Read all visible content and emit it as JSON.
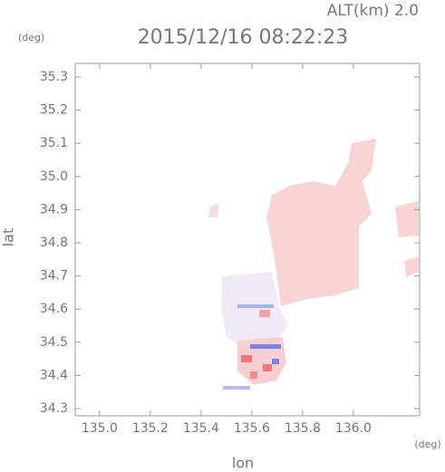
{
  "chart_data": {
    "type": "heatmap",
    "title": "2015/12/16 08:22:23",
    "subtitle": "ALT(km) 2.0",
    "x_label": "lon",
    "x_unit": "(deg)",
    "y_label": "lat",
    "y_unit": "(deg)",
    "xlim": [
      134.904,
      136.261
    ],
    "ylim": [
      34.278,
      35.341
    ],
    "xticks": [
      {
        "value": 135,
        "label": "135.0"
      },
      135.2,
      135.4,
      135.6,
      135.8,
      {
        "value": 136,
        "label": "136.0"
      }
    ],
    "yticks": [
      34.3,
      34.4,
      34.5,
      34.6,
      34.7,
      34.8,
      34.9,
      {
        "value": 35,
        "label": "35.0"
      },
      35.1,
      35.2,
      35.3
    ]
  }
}
